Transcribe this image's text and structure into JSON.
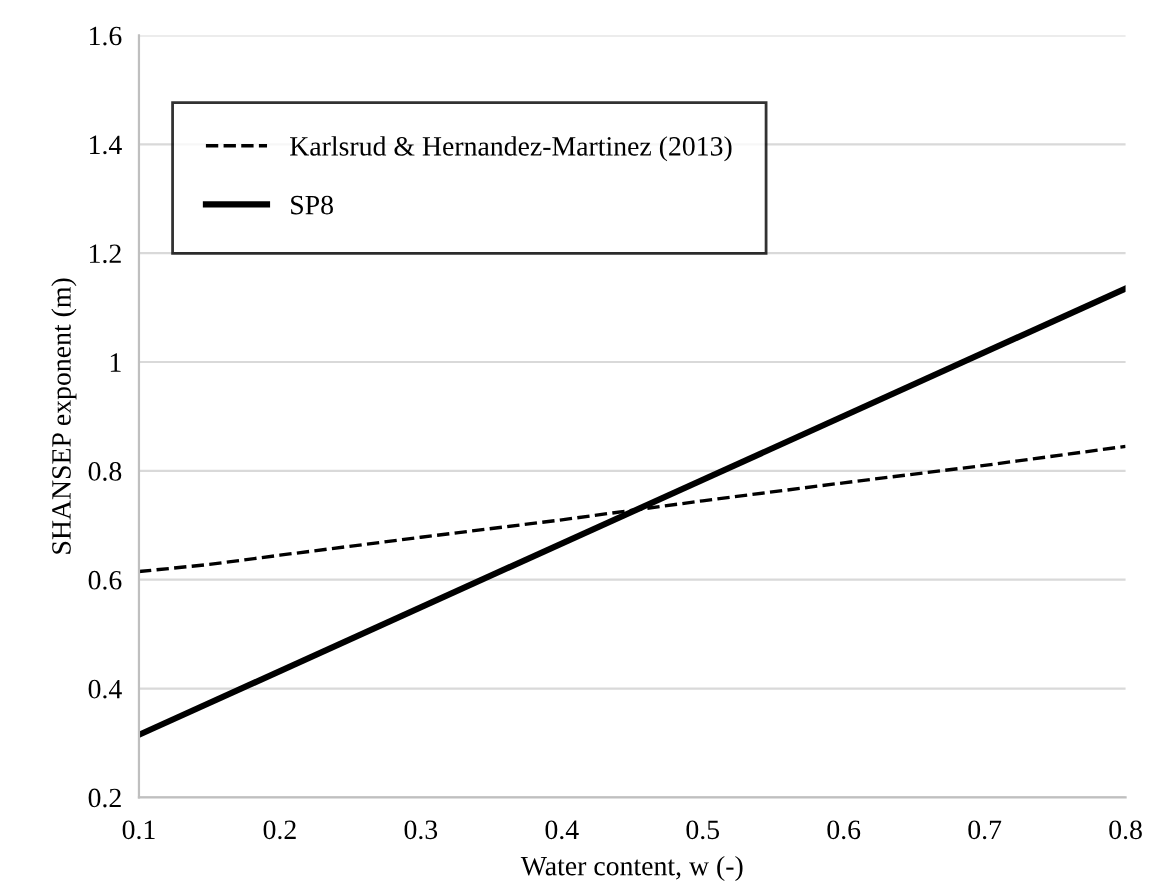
{
  "chart_data": {
    "type": "line",
    "xlabel": "Water content, w (-)",
    "ylabel": "SHANSEP exponent (m)",
    "x": [
      0.1,
      0.15,
      0.2,
      0.3,
      0.4,
      0.5,
      0.6,
      0.7,
      0.8
    ],
    "series": [
      {
        "name": "Karlsrud & Hernandez-Martinez (2013)",
        "color": "#000000",
        "line_style": "dashed",
        "values": [
          0.615,
          0.628,
          0.645,
          0.678,
          0.71,
          0.745,
          0.778,
          0.81,
          0.845
        ]
      },
      {
        "name": "SP8",
        "color": "#000000",
        "line_style": "solid",
        "x": [
          0.1,
          0.8
        ],
        "values": [
          0.315,
          1.135
        ]
      }
    ],
    "xlim": [
      0.1,
      0.8
    ],
    "xticks": [
      0.1,
      0.2,
      0.3,
      0.4,
      0.5,
      0.6,
      0.7,
      0.8
    ],
    "ylim": [
      0.2,
      1.6
    ],
    "yticks": [
      0.2,
      0.4,
      0.6,
      0.8,
      1,
      1.2,
      1.4,
      1.6
    ],
    "grid": "y",
    "legend": "top left",
    "marker": "none"
  }
}
